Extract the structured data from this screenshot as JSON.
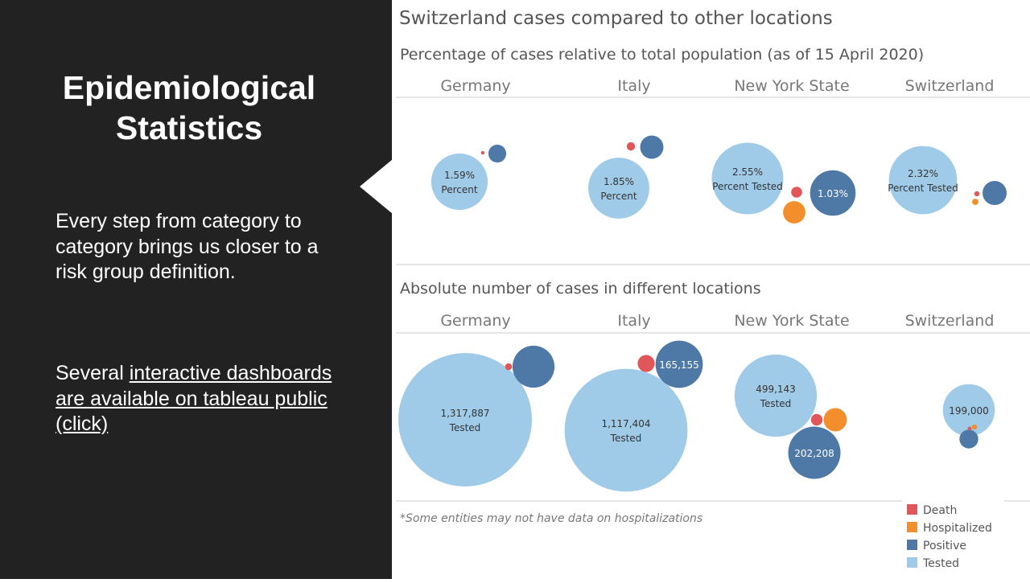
{
  "slide": {
    "title_line1": "Epidemiological",
    "title_line2": "Statistics",
    "body1": "Every step from category to category brings us closer to a risk group definition.",
    "body2_prefix": "Several ",
    "body2_link": "interactive dashboards are available on tableau public (click)"
  },
  "dashboard": {
    "title": "Switzerland cases compared to other locations",
    "footnote": "*Some entities may not have data on hospitalizations"
  },
  "colors": {
    "Death": "#e15759",
    "Hospitalized": "#f28e2b",
    "Positive": "#4e79a7",
    "Tested": "#a0cbe8"
  },
  "legend": [
    "Death",
    "Hospitalized",
    "Positive",
    "Tested"
  ],
  "chart_data": [
    {
      "type": "bubble",
      "title": "Percentage of cases relative to total population (as of 15 April 2020)",
      "categories": [
        "Germany",
        "Italy",
        "New York State",
        "Switzerland"
      ],
      "unit": "%",
      "series": [
        {
          "name": "Tested",
          "values": [
            1.59,
            1.85,
            2.55,
            2.32
          ]
        },
        {
          "name": "Positive",
          "values": [
            0.16,
            0.27,
            1.03,
            0.29
          ]
        },
        {
          "name": "Hospitalized",
          "values": [
            null,
            null,
            0.25,
            0.02
          ]
        },
        {
          "name": "Death",
          "values": [
            0.004,
            0.035,
            0.06,
            0.013
          ]
        }
      ],
      "labels": [
        {
          "category": "Germany",
          "series": "Tested",
          "lines": [
            "1.59%",
            "Percent"
          ]
        },
        {
          "category": "Italy",
          "series": "Tested",
          "lines": [
            "1.85%",
            "Percent"
          ]
        },
        {
          "category": "New York State",
          "series": "Tested",
          "lines": [
            "2.55%",
            "Percent Tested"
          ]
        },
        {
          "category": "New York State",
          "series": "Positive",
          "lines": [
            "1.03%"
          ]
        },
        {
          "category": "Switzerland",
          "series": "Tested",
          "lines": [
            "2.32%",
            "Percent Tested"
          ]
        }
      ]
    },
    {
      "type": "bubble",
      "title": "Absolute number of cases in different locations",
      "categories": [
        "Germany",
        "Italy",
        "New York State",
        "Switzerland"
      ],
      "series": [
        {
          "name": "Tested",
          "values": [
            1317887,
            1117404,
            499143,
            199000
          ]
        },
        {
          "name": "Positive",
          "values": [
            130000,
            165155,
            202208,
            26000
          ]
        },
        {
          "name": "Hospitalized",
          "values": [
            null,
            null,
            40000,
            2000
          ]
        },
        {
          "name": "Death",
          "values": [
            3500,
            21645,
            10000,
            1100
          ]
        }
      ],
      "labels": [
        {
          "category": "Germany",
          "series": "Tested",
          "lines": [
            "1,317,887",
            "Tested"
          ]
        },
        {
          "category": "Italy",
          "series": "Tested",
          "lines": [
            "1,117,404",
            "Tested"
          ]
        },
        {
          "category": "Italy",
          "series": "Positive",
          "lines": [
            "165,155"
          ]
        },
        {
          "category": "New York State",
          "series": "Tested",
          "lines": [
            "499,143",
            "Tested"
          ]
        },
        {
          "category": "New York State",
          "series": "Positive",
          "lines": [
            "202,208"
          ]
        },
        {
          "category": "Switzerland",
          "series": "Tested",
          "lines": [
            "199,000"
          ]
        }
      ]
    }
  ]
}
